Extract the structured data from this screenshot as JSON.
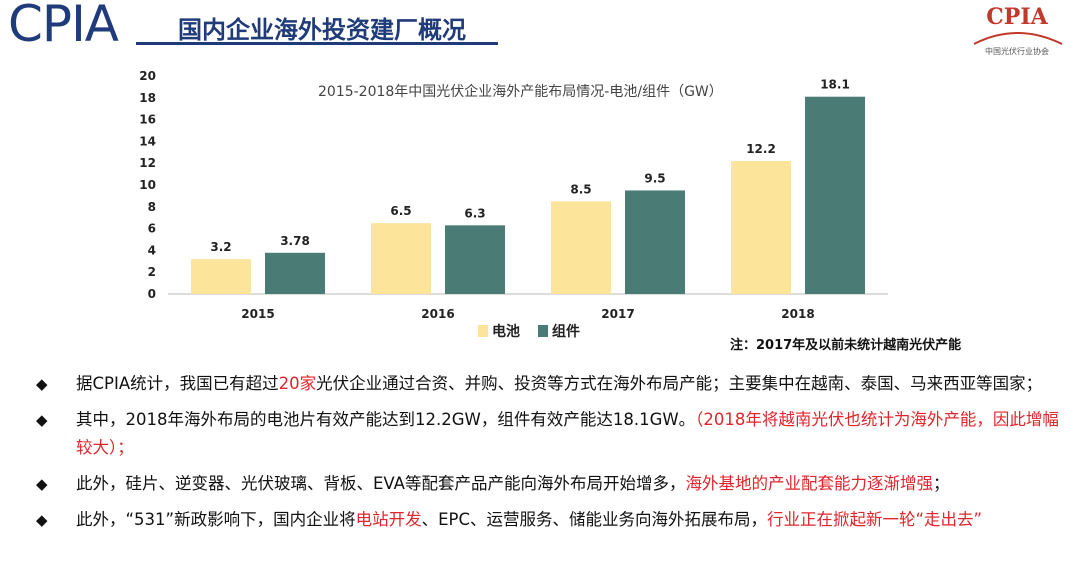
{
  "header": {
    "brand": "CPIA",
    "title": "国内企业海外投资建厂概况",
    "logo_text": "CPIA",
    "logo_sub": "中国光伏行业协会"
  },
  "chart_data": {
    "type": "bar",
    "title": "2015-2018年中国光伏企业海外产能布局情况-电池/组件（GW）",
    "categories": [
      "2015",
      "2016",
      "2017",
      "2018"
    ],
    "series": [
      {
        "name": "电池",
        "values": [
          3.2,
          6.5,
          8.5,
          12.2
        ],
        "color": "#fce49a"
      },
      {
        "name": "组件",
        "values": [
          3.78,
          6.3,
          9.5,
          18.1
        ],
        "color": "#4a7c75"
      }
    ],
    "value_labels": [
      [
        "3.2",
        "6.5",
        "8.5",
        "12.2"
      ],
      [
        "3.78",
        "6.3",
        "9.5",
        "18.1"
      ]
    ],
    "ylim": [
      0,
      20
    ],
    "yticks": [
      "0",
      "2",
      "4",
      "6",
      "8",
      "10",
      "12",
      "14",
      "16",
      "18",
      "20"
    ],
    "grid": false,
    "legend": "bottom"
  },
  "note": "注：2017年及以前未统计越南光伏产能",
  "bullets": [
    {
      "parts": [
        {
          "text": "据CPIA统计，我国已有超过",
          "red": false
        },
        {
          "text": "20家",
          "red": true
        },
        {
          "text": "光伏企业通过合资、并购、投资等方式在海外布局产能；主要集中在越南、泰国、马来西亚等国家；",
          "red": false
        }
      ]
    },
    {
      "parts": [
        {
          "text": "其中，2018年海外布局的电池片有效产能达到12.2GW，组件有效产能达18.1GW。",
          "red": false
        },
        {
          "text": "（2018年将越南光伏也统计为海外产能，因此增幅较大）；",
          "red": true
        }
      ]
    },
    {
      "parts": [
        {
          "text": "此外，硅片、逆变器、光伏玻璃、背板、EVA等配套产品产能向海外布局开始增多，",
          "red": false
        },
        {
          "text": "海外基地的产业配套能力逐渐增强",
          "red": true
        },
        {
          "text": "；",
          "red": false
        }
      ]
    },
    {
      "parts": [
        {
          "text": "此外，“531”新政影响下，国内企业将",
          "red": false
        },
        {
          "text": "电站开发",
          "red": true
        },
        {
          "text": "、EPC、运营服务、储能业务向海外拓展布局，",
          "red": false
        },
        {
          "text": "行业正在掀起新一轮“走出去”",
          "red": true
        }
      ]
    }
  ],
  "bullet_symbol": "◆"
}
